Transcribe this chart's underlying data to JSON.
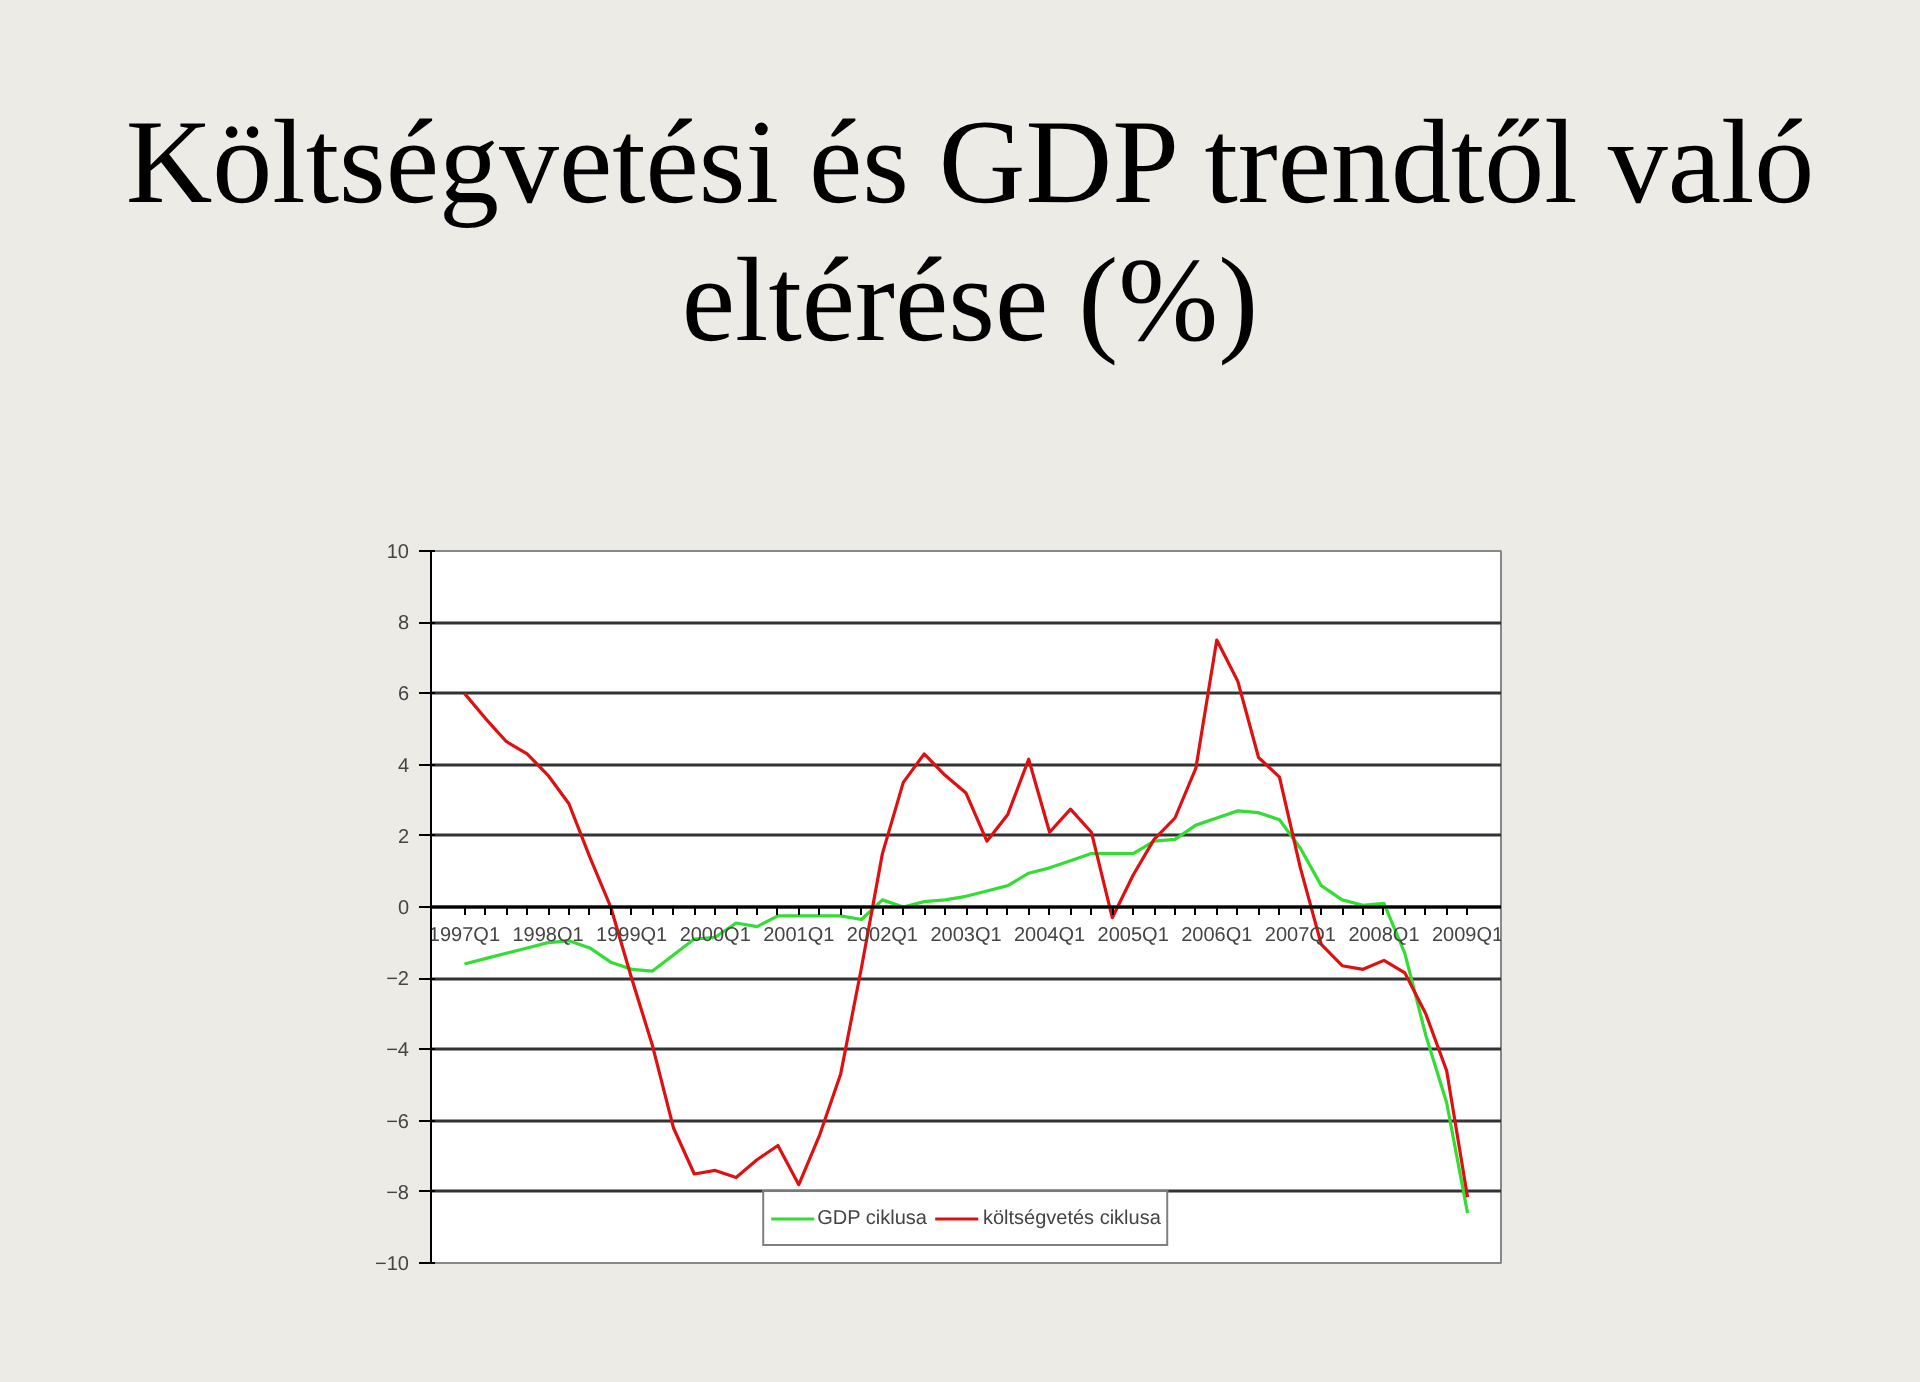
{
  "chart_data": {
    "type": "line",
    "title": "Költségvetési és GDP trendtől való\neltérése (%)",
    "categories": [
      "1997Q1",
      null,
      null,
      null,
      "1998Q1",
      null,
      null,
      null,
      "1999Q1",
      null,
      null,
      null,
      "2000Q1",
      null,
      null,
      null,
      "2001Q1",
      null,
      null,
      null,
      "2002Q1",
      null,
      null,
      null,
      "2003Q1",
      null,
      null,
      null,
      "2004Q1",
      null,
      null,
      null,
      "2005Q1",
      null,
      null,
      null,
      "2006Q1",
      null,
      null,
      null,
      "2007Q1",
      null,
      null,
      null,
      "2008Q1",
      null,
      null,
      null,
      "2009Q1"
    ],
    "series": [
      {
        "name": "GDP ciklusa",
        "color": "#33dd33",
        "values": [
          -1.6,
          -1.45,
          -1.3,
          -1.15,
          -1.0,
          -0.95,
          -1.15,
          -1.55,
          -1.75,
          -1.8,
          -1.35,
          -0.9,
          -0.85,
          -0.45,
          -0.55,
          -0.25,
          -0.25,
          -0.25,
          -0.25,
          -0.35,
          0.2,
          0.0,
          0.15,
          0.2,
          0.3,
          0.45,
          0.6,
          0.95,
          1.1,
          1.3,
          1.5,
          1.5,
          1.5,
          1.85,
          1.9,
          2.3,
          2.5,
          2.7,
          2.65,
          2.45,
          1.65,
          0.6,
          0.2,
          0.05,
          0.1,
          -1.3,
          -3.6,
          -5.5,
          -8.6
        ]
      },
      {
        "name": "költségvetés ciklusa",
        "color": "#dd1111",
        "values": [
          6.0,
          5.3,
          4.65,
          4.3,
          3.7,
          2.9,
          1.4,
          0.0,
          -2.0,
          -3.9,
          -6.2,
          -7.5,
          -7.4,
          -7.6,
          -7.1,
          -6.7,
          -7.8,
          -6.4,
          -4.7,
          -1.7,
          1.5,
          3.5,
          4.3,
          3.7,
          3.2,
          1.85,
          2.6,
          4.15,
          2.1,
          2.75,
          2.1,
          -0.3,
          0.9,
          1.9,
          2.5,
          3.9,
          7.5,
          6.35,
          4.2,
          3.65,
          1.1,
          -1.05,
          -1.65,
          -1.75,
          -1.5,
          -1.85,
          -3.0,
          -4.6,
          -8.15
        ]
      }
    ],
    "ylim": [
      -10,
      10
    ],
    "yticks": [
      -10,
      -8,
      -6,
      -4,
      -2,
      0,
      2,
      4,
      6,
      8,
      10
    ],
    "grid": "y",
    "legend": "bottom",
    "marker": "none",
    "line_style": "solid"
  }
}
